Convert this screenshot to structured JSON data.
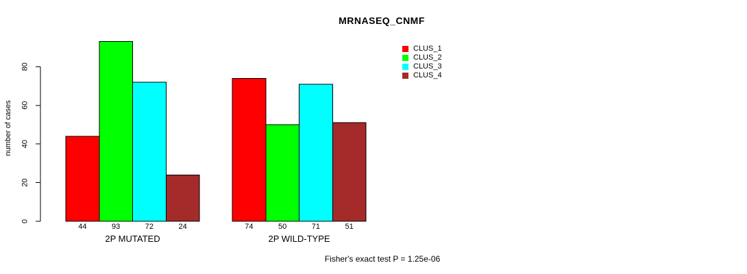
{
  "chart_data": {
    "type": "bar",
    "title": "MRNASEQ_CNMF",
    "ylabel": "number of cases",
    "xlabel": "",
    "ylim": [
      0,
      93
    ],
    "yticks": [
      0,
      20,
      40,
      60,
      80
    ],
    "grid": false,
    "legend_position": "top-right",
    "categories": [
      "2P MUTATED",
      "2P WILD-TYPE"
    ],
    "series": [
      {
        "name": "CLUS_1",
        "color": "#ff0000",
        "values": [
          44,
          74
        ]
      },
      {
        "name": "CLUS_2",
        "color": "#00ff00",
        "values": [
          93,
          50
        ]
      },
      {
        "name": "CLUS_3",
        "color": "#00ffff",
        "values": [
          72,
          71
        ]
      },
      {
        "name": "CLUS_4",
        "color": "#a52a2a",
        "values": [
          24,
          51
        ]
      }
    ],
    "bar_value_labels": [
      [
        44,
        93,
        72,
        24
      ],
      [
        74,
        50,
        71,
        51
      ]
    ],
    "annotation": "Fisher's exact test P = 1.25e-06"
  },
  "colors": {
    "axis": "#000000",
    "text": "#000000",
    "background": "#ffffff"
  }
}
